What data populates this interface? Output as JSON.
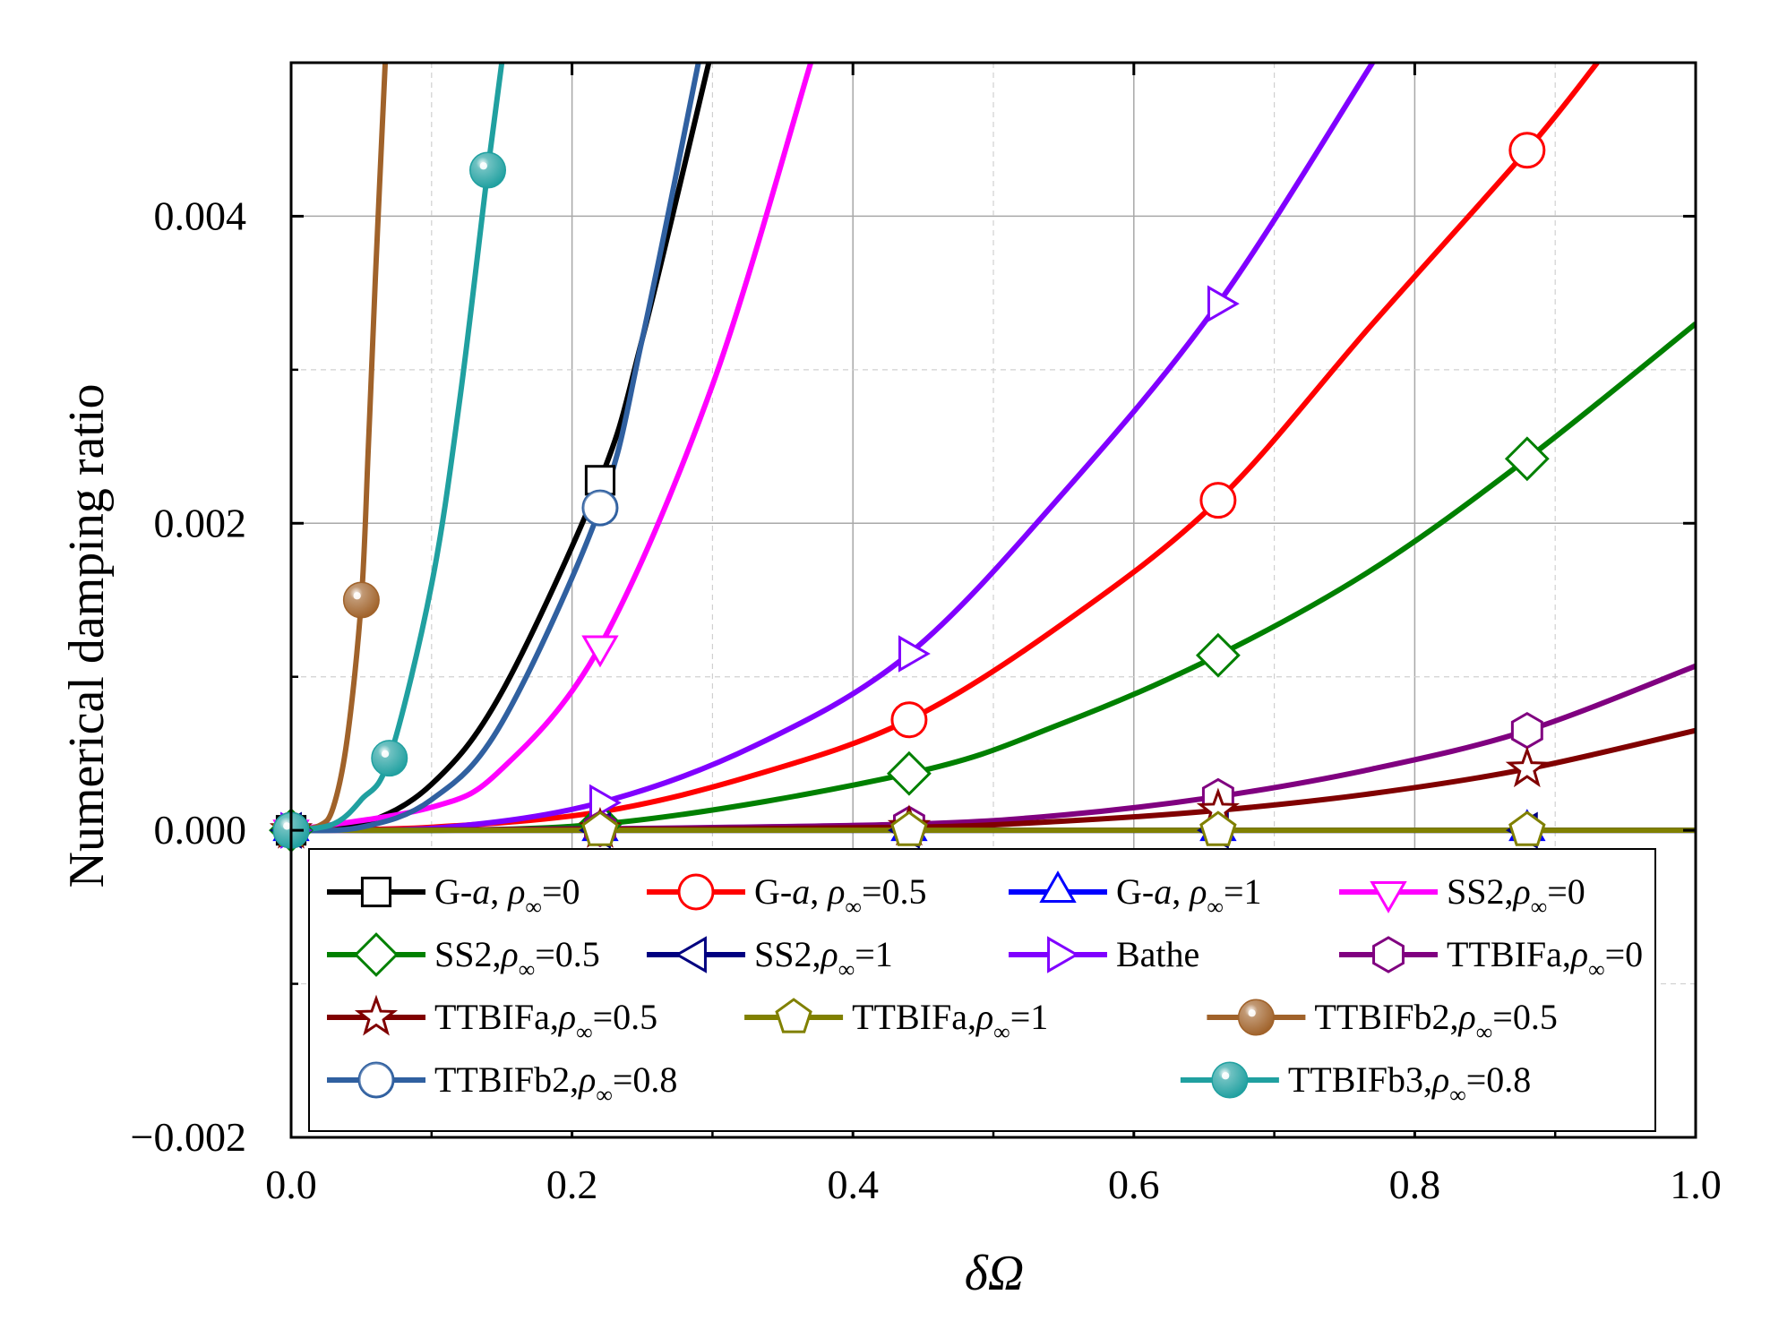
{
  "chart_data": {
    "type": "line",
    "title": "",
    "xlabel": "δΩ",
    "ylabel": "Numerical damping ratio",
    "xlim": [
      0.0,
      1.0
    ],
    "ylim": [
      -0.002,
      0.005
    ],
    "x_ticks": [
      0.0,
      0.2,
      0.4,
      0.6,
      0.8,
      1.0
    ],
    "x_tick_labels": [
      "0.0",
      "0.2",
      "0.4",
      "0.6",
      "0.8",
      "1.0"
    ],
    "y_ticks": [
      -0.002,
      0.0,
      0.002,
      0.004
    ],
    "y_tick_labels": [
      "−0.002",
      "0.000",
      "0.002",
      "0.004"
    ],
    "grid": true,
    "legend_position": "bottom-inside",
    "series": [
      {
        "name": "G-α, ρ∞=0",
        "label_pre": "G-",
        "label_italic": "a",
        "label_mid": ", ",
        "label_rho": "ρ",
        "label_sub": "∞",
        "label_post": "=0",
        "color": "#000000",
        "marker": "square",
        "marker_style": "open",
        "x": [
          0.0,
          0.05,
          0.1,
          0.15,
          0.22,
          0.25,
          0.3
        ],
        "y": [
          0.0,
          4e-05,
          0.0003,
          0.0009,
          0.00228,
          0.0032,
          0.0051
        ],
        "marker_x": [
          0.0,
          0.22
        ]
      },
      {
        "name": "G-α, ρ∞=0.5",
        "label_pre": "G-",
        "label_italic": "a",
        "label_mid": ", ",
        "label_rho": "ρ",
        "label_sub": "∞",
        "label_post": "=0.5",
        "color": "#ff0000",
        "marker": "circle",
        "marker_style": "open",
        "x": [
          0.0,
          0.1,
          0.22,
          0.33,
          0.44,
          0.55,
          0.66,
          0.77,
          0.88,
          0.93
        ],
        "y": [
          0.0,
          2e-05,
          0.00012,
          0.00036,
          0.00072,
          0.00135,
          0.00215,
          0.0033,
          0.00443,
          0.005
        ],
        "marker_x": [
          0.0,
          0.44,
          0.66,
          0.88
        ]
      },
      {
        "name": "G-α, ρ∞=1",
        "label_pre": "G-",
        "label_italic": "a",
        "label_mid": ", ",
        "label_rho": "ρ",
        "label_sub": "∞",
        "label_post": "=1",
        "color": "#0000ff",
        "marker": "triangle-up",
        "marker_style": "open",
        "x": [
          0.0,
          1.0
        ],
        "y": [
          0.0,
          0.0
        ],
        "marker_x": [
          0.0,
          0.22,
          0.44,
          0.66,
          0.88
        ]
      },
      {
        "name": "SS2,ρ∞=0",
        "label_pre": "SS2,",
        "label_italic": "",
        "label_mid": "",
        "label_rho": "ρ",
        "label_sub": "∞",
        "label_post": "=0",
        "color": "#ff00ff",
        "marker": "triangle-down",
        "marker_style": "open",
        "x": [
          0.0,
          0.1,
          0.15,
          0.22,
          0.3,
          0.37
        ],
        "y": [
          0.0,
          0.00015,
          0.0004,
          0.0012,
          0.0029,
          0.005
        ],
        "marker_x": [
          0.0,
          0.22
        ]
      },
      {
        "name": "SS2,ρ∞=0.5",
        "label_pre": "SS2,",
        "label_italic": "",
        "label_mid": "",
        "label_rho": "ρ",
        "label_sub": "∞",
        "label_post": "=0.5",
        "color": "#008000",
        "marker": "diamond",
        "marker_style": "open",
        "x": [
          0.0,
          0.22,
          0.44,
          0.55,
          0.66,
          0.77,
          0.88,
          1.0
        ],
        "y": [
          0.0,
          4e-05,
          0.00037,
          0.0007,
          0.00114,
          0.0017,
          0.00242,
          0.0033
        ],
        "marker_x": [
          0.0,
          0.22,
          0.44,
          0.66,
          0.88
        ]
      },
      {
        "name": "SS2,ρ∞=1",
        "label_pre": "SS2,",
        "label_italic": "",
        "label_mid": "",
        "label_rho": "ρ",
        "label_sub": "∞",
        "label_post": "=1",
        "color": "#000080",
        "marker": "triangle-left",
        "marker_style": "open",
        "x": [
          0.0,
          1.0
        ],
        "y": [
          0.0,
          0.0
        ],
        "marker_x": [
          0.0,
          0.22,
          0.44,
          0.66,
          0.88
        ]
      },
      {
        "name": "Bathe",
        "label_pre": "Bathe",
        "label_italic": "",
        "label_mid": "",
        "label_rho": "",
        "label_sub": "",
        "label_post": "",
        "color": "#8000ff",
        "marker": "triangle-right",
        "marker_style": "open",
        "x": [
          0.0,
          0.11,
          0.22,
          0.33,
          0.44,
          0.55,
          0.66,
          0.77
        ],
        "y": [
          0.0,
          2e-05,
          0.00018,
          0.00055,
          0.00115,
          0.0022,
          0.00343,
          0.005
        ],
        "marker_x": [
          0.0,
          0.22,
          0.44,
          0.66
        ]
      },
      {
        "name": "TTBIFa,ρ∞=0",
        "label_pre": "TTBIFa,",
        "label_italic": "",
        "label_mid": "",
        "label_rho": "ρ",
        "label_sub": "∞",
        "label_post": "=0",
        "color": "#800080",
        "marker": "hexagon",
        "marker_style": "open",
        "x": [
          0.0,
          0.22,
          0.44,
          0.55,
          0.66,
          0.77,
          0.88,
          1.0
        ],
        "y": [
          0.0,
          1e-05,
          4e-05,
          0.0001,
          0.00022,
          0.0004,
          0.00065,
          0.00107
        ],
        "marker_x": [
          0.0,
          0.22,
          0.44,
          0.66,
          0.88
        ]
      },
      {
        "name": "TTBIFa,ρ∞=0.5",
        "label_pre": "TTBIFa,",
        "label_italic": "",
        "label_mid": "",
        "label_rho": "ρ",
        "label_sub": "∞",
        "label_post": "=0.5",
        "color": "#800000",
        "marker": "star",
        "marker_style": "open",
        "x": [
          0.0,
          0.22,
          0.44,
          0.55,
          0.66,
          0.77,
          0.88,
          1.0
        ],
        "y": [
          0.0,
          5e-06,
          2e-05,
          6e-05,
          0.00013,
          0.00024,
          0.0004,
          0.00065
        ],
        "marker_x": [
          0.0,
          0.22,
          0.44,
          0.66,
          0.88
        ]
      },
      {
        "name": "TTBIFa,ρ∞=1",
        "label_pre": "TTBIFa,",
        "label_italic": "",
        "label_mid": "",
        "label_rho": "ρ",
        "label_sub": "∞",
        "label_post": "=1",
        "color": "#808000",
        "marker": "pentagon",
        "marker_style": "open",
        "x": [
          0.0,
          1.0
        ],
        "y": [
          0.0,
          0.0
        ],
        "marker_x": [
          0.0,
          0.22,
          0.44,
          0.66,
          0.88
        ]
      },
      {
        "name": "TTBIFb2,ρ∞=0.5",
        "label_pre": "TTBIFb2,",
        "label_italic": "",
        "label_mid": "",
        "label_rho": "ρ",
        "label_sub": "∞",
        "label_post": "=0.5",
        "color": "#a0622a",
        "marker": "ball",
        "marker_style": "filled",
        "x": [
          0.0,
          0.02,
          0.03,
          0.04,
          0.05,
          0.055,
          0.06,
          0.067
        ],
        "y": [
          0.0,
          3e-05,
          0.00015,
          0.0006,
          0.0015,
          0.0025,
          0.0036,
          0.005
        ],
        "marker_x": [
          0.0,
          0.05
        ]
      },
      {
        "name": "TTBIFb2,ρ∞=0.8",
        "label_pre": "TTBIFb2,",
        "label_italic": "",
        "label_mid": "",
        "label_rho": "ρ",
        "label_sub": "∞",
        "label_post": "=0.8",
        "color": "#3060a0",
        "marker": "ball",
        "marker_style": "open",
        "x": [
          0.0,
          0.05,
          0.1,
          0.15,
          0.22,
          0.25,
          0.29
        ],
        "y": [
          0.0,
          2e-05,
          0.0002,
          0.0007,
          0.0021,
          0.0032,
          0.005
        ],
        "marker_x": [
          0.0,
          0.22
        ]
      },
      {
        "name": "TTBIFb3,ρ∞=0.8",
        "label_pre": "TTBIFb3,",
        "label_italic": "",
        "label_mid": "",
        "label_rho": "ρ",
        "label_sub": "∞",
        "label_post": "=0.8",
        "color": "#20a0a0",
        "marker": "ball",
        "marker_style": "filled",
        "x": [
          0.0,
          0.03,
          0.05,
          0.07,
          0.1,
          0.12,
          0.14,
          0.15
        ],
        "y": [
          0.0,
          4e-05,
          0.0002,
          0.00047,
          0.0016,
          0.0028,
          0.0043,
          0.005
        ],
        "marker_x": [
          0.0,
          0.07,
          0.14
        ]
      }
    ]
  }
}
